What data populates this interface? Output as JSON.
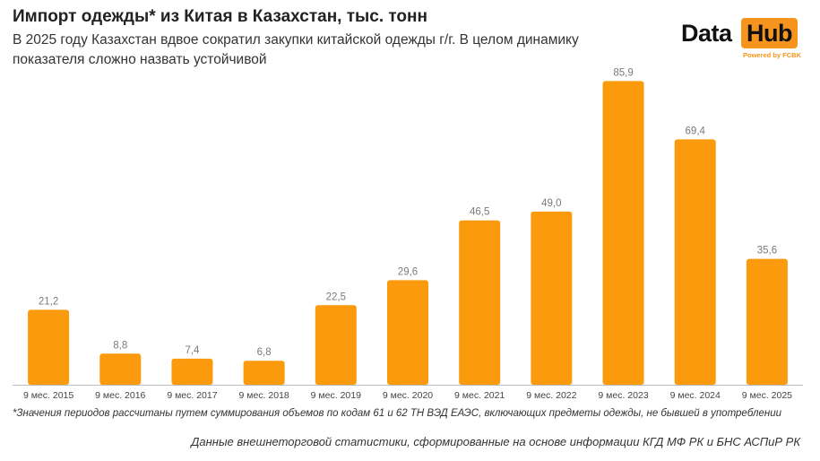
{
  "header": {
    "title": "Импорт одежды* из Китая в Казахстан, тыс. тонн",
    "subtitle": "В 2025 году Казахстан вдвое сократил закупки китайской одежды г/г. В целом динамику показателя сложно назвать устойчивой"
  },
  "logo": {
    "word1": "Data",
    "word2": "Hub",
    "powered": "Powered by FCBK"
  },
  "chart_data": {
    "type": "bar",
    "categories": [
      "9 мес. 2015",
      "9 мес. 2016",
      "9 мес. 2017",
      "9 мес. 2018",
      "9 мес. 2019",
      "9 мес. 2020",
      "9 мес. 2021",
      "9 мес. 2022",
      "9 мес. 2023",
      "9 мес. 2024",
      "9 мес. 2025"
    ],
    "values": [
      21.2,
      8.8,
      7.4,
      6.8,
      22.5,
      29.6,
      46.5,
      49.0,
      85.9,
      69.4,
      35.6
    ],
    "value_labels": [
      "21,2",
      "8,8",
      "7,4",
      "6,8",
      "22,5",
      "29,6",
      "46,5",
      "49,0",
      "85,9",
      "69,4",
      "35,6"
    ],
    "title": "Импорт одежды* из Китая в Казахстан, тыс. тонн",
    "xlabel": "",
    "ylabel": "",
    "ylim": [
      0,
      86
    ],
    "grid": false,
    "bar_color": "#fb9a0c"
  },
  "footer": {
    "footnote": "*Значения периодов рассчитаны путем суммирования объемов по кодам 61 и 62 ТН ВЭД ЕАЭС, включающих предметы одежды, не бывшей в употреблении",
    "source": "Данные внешнеторговой статистики, сформированные на основе информации КГД МФ РК и БНС АСПиР РК"
  }
}
